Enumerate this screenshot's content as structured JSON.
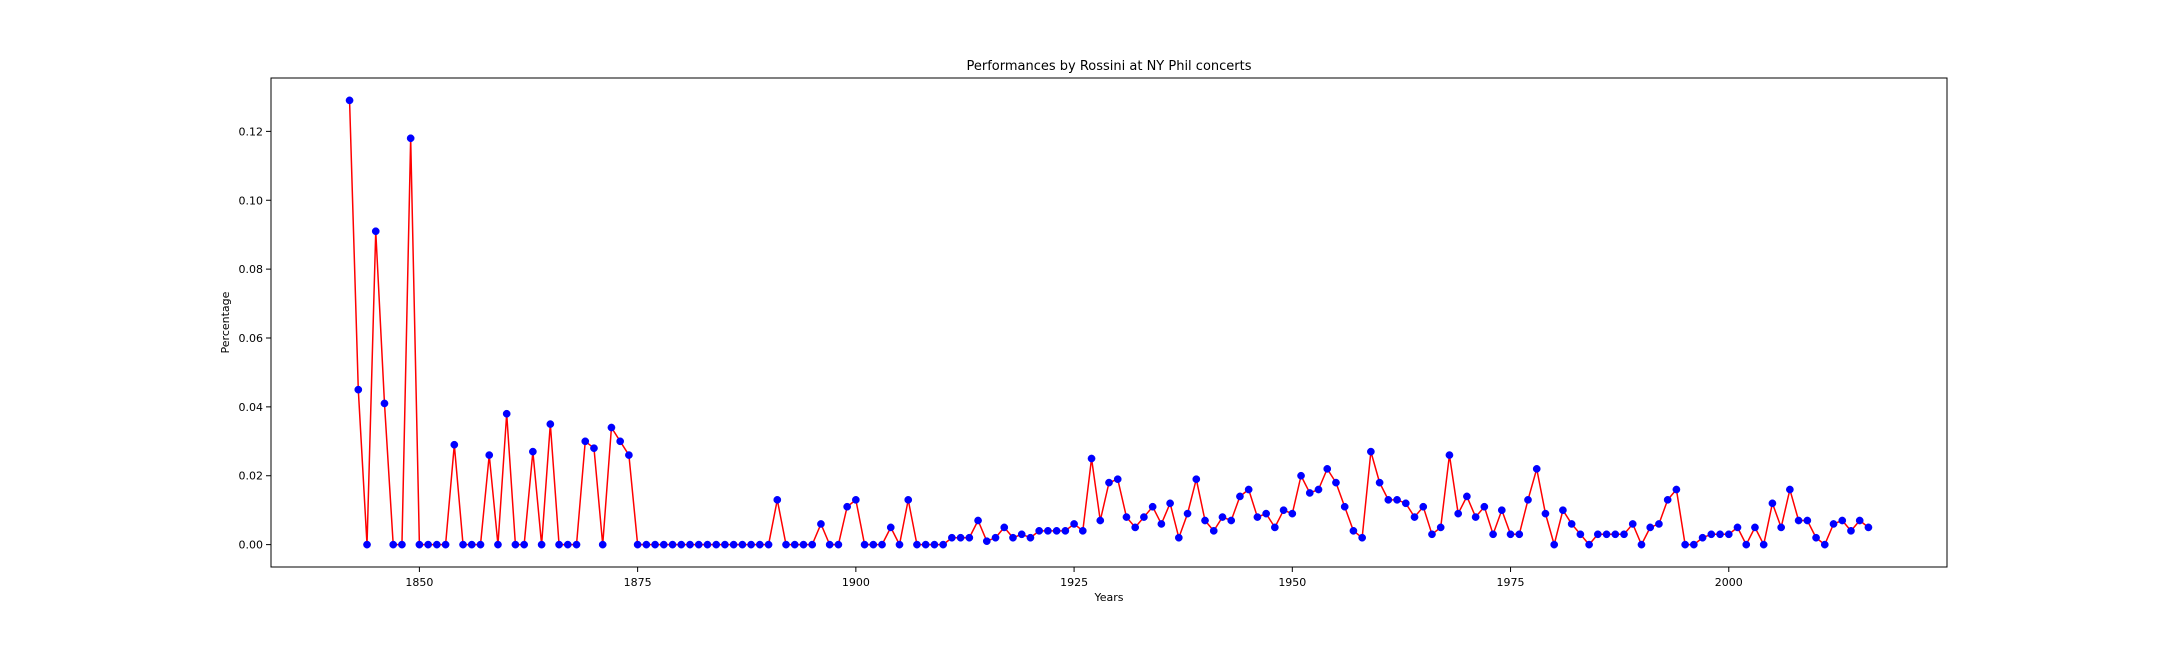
{
  "chart_data": {
    "type": "line",
    "title": "Performances by Rossini at NY Phil concerts",
    "xlabel": "Years",
    "ylabel": "Percentage",
    "xlim": [
      1833,
      2025
    ],
    "ylim": [
      -0.0065,
      0.1355
    ],
    "xticks": [
      1850,
      1875,
      1900,
      1925,
      1950,
      1975,
      2000
    ],
    "xtick_labels": [
      "1850",
      "1875",
      "1900",
      "1925",
      "1950",
      "1975",
      "2000"
    ],
    "yticks": [
      0.0,
      0.02,
      0.04,
      0.06,
      0.08,
      0.1,
      0.12
    ],
    "ytick_labels": [
      "0.00",
      "0.02",
      "0.04",
      "0.06",
      "0.08",
      "0.10",
      "0.12"
    ],
    "grid": false,
    "line_color": "#ff0000",
    "marker_color": "#0000ff",
    "x": [
      1842,
      1843,
      1844,
      1845,
      1846,
      1847,
      1848,
      1849,
      1850,
      1851,
      1852,
      1853,
      1854,
      1855,
      1856,
      1857,
      1858,
      1859,
      1860,
      1861,
      1862,
      1863,
      1864,
      1865,
      1866,
      1867,
      1868,
      1869,
      1870,
      1871,
      1872,
      1873,
      1874,
      1875,
      1876,
      1877,
      1878,
      1879,
      1880,
      1881,
      1882,
      1883,
      1884,
      1885,
      1886,
      1887,
      1888,
      1889,
      1890,
      1891,
      1892,
      1893,
      1894,
      1895,
      1896,
      1897,
      1898,
      1899,
      1900,
      1901,
      1902,
      1903,
      1904,
      1905,
      1906,
      1907,
      1908,
      1909,
      1910,
      1911,
      1912,
      1913,
      1914,
      1915,
      1916,
      1917,
      1918,
      1919,
      1920,
      1921,
      1922,
      1923,
      1924,
      1925,
      1926,
      1927,
      1928,
      1929,
      1930,
      1931,
      1932,
      1933,
      1934,
      1935,
      1936,
      1937,
      1938,
      1939,
      1940,
      1941,
      1942,
      1943,
      1944,
      1945,
      1946,
      1947,
      1948,
      1949,
      1950,
      1951,
      1952,
      1953,
      1954,
      1955,
      1956,
      1957,
      1958,
      1959,
      1960,
      1961,
      1962,
      1963,
      1964,
      1965,
      1966,
      1967,
      1968,
      1969,
      1970,
      1971,
      1972,
      1973,
      1974,
      1975,
      1976,
      1977,
      1978,
      1979,
      1980,
      1981,
      1982,
      1983,
      1984,
      1985,
      1986,
      1987,
      1988,
      1989,
      1990,
      1991,
      1992,
      1993,
      1994,
      1995,
      1996,
      1997,
      1998,
      1999,
      2000,
      2001,
      2002,
      2003,
      2004,
      2005,
      2006,
      2007,
      2008,
      2009,
      2010,
      2011,
      2012,
      2013,
      2014,
      2015,
      2016
    ],
    "series": [
      {
        "values": [
          0.129,
          0.045,
          0.0,
          0.091,
          0.041,
          0.0,
          0.0,
          0.118,
          0.0,
          0.0,
          0.0,
          0.0,
          0.029,
          0.0,
          0.0,
          0.0,
          0.026,
          0.0,
          0.038,
          0.0,
          0.0,
          0.027,
          0.0,
          0.035,
          0.0,
          0.0,
          0.0,
          0.03,
          0.028,
          0.0,
          0.034,
          0.03,
          0.026,
          0.0,
          0.0,
          0.0,
          0.0,
          0.0,
          0.0,
          0.0,
          0.0,
          0.0,
          0.0,
          0.0,
          0.0,
          0.0,
          0.0,
          0.0,
          0.0,
          0.013,
          0.0,
          0.0,
          0.0,
          0.0,
          0.006,
          0.0,
          0.0,
          0.011,
          0.013,
          0.0,
          0.0,
          0.0,
          0.005,
          0.0,
          0.013,
          0.0,
          0.0,
          0.0,
          0.0,
          0.002,
          0.002,
          0.002,
          0.007,
          0.001,
          0.002,
          0.005,
          0.002,
          0.003,
          0.002,
          0.004,
          0.004,
          0.004,
          0.004,
          0.006,
          0.004,
          0.025,
          0.007,
          0.018,
          0.019,
          0.008,
          0.005,
          0.008,
          0.011,
          0.006,
          0.012,
          0.002,
          0.009,
          0.019,
          0.007,
          0.004,
          0.008,
          0.007,
          0.014,
          0.016,
          0.008,
          0.009,
          0.005,
          0.01,
          0.009,
          0.02,
          0.015,
          0.016,
          0.022,
          0.018,
          0.011,
          0.004,
          0.002,
          0.027,
          0.018,
          0.013,
          0.013,
          0.012,
          0.008,
          0.011,
          0.003,
          0.005,
          0.026,
          0.009,
          0.014,
          0.008,
          0.011,
          0.003,
          0.01,
          0.003,
          0.003,
          0.013,
          0.022,
          0.009,
          0.0,
          0.01,
          0.006,
          0.003,
          0.0,
          0.003,
          0.003,
          0.003,
          0.003,
          0.006,
          0.0,
          0.005,
          0.006,
          0.013,
          0.016,
          0.0,
          0.0,
          0.002,
          0.003,
          0.003,
          0.003,
          0.005,
          0.0,
          0.005,
          0.0,
          0.012,
          0.005,
          0.016,
          0.007,
          0.007,
          0.002,
          0.0,
          0.006,
          0.007,
          0.004,
          0.007,
          0.005
        ]
      }
    ]
  }
}
